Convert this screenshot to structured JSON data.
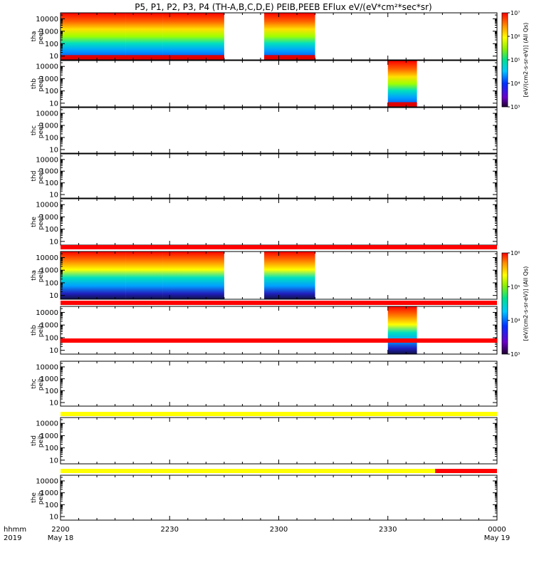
{
  "title": "P5, P1, P2, P3, P4 (TH-A,B,C,D,E) PEIB,PEEB EFlux eV/(eV*cm²*sec*sr)",
  "x_axis": {
    "row1_label": "hhmm",
    "row2_label": "2019",
    "ticks": [
      "2200",
      "2230",
      "2300",
      "2330",
      "0000"
    ],
    "dates": [
      "May 18",
      "May 19"
    ]
  },
  "y_tick_labels": [
    "10",
    "100",
    "1000",
    "10000"
  ],
  "electron_colorbar": {
    "unit_label": "[eV/(cm2-s-sr-eV)] (All Qs)",
    "labels": [
      "10³",
      "10⁴",
      "10⁵",
      "10⁶",
      "10⁷"
    ]
  },
  "ion_colorbar": {
    "unit_label": "[eV/(cm2-s-sr-eV)] (All Qs)",
    "labels": [
      "10³",
      "10⁴",
      "10⁵",
      "10⁶"
    ]
  },
  "colors": {
    "flag_red": "#ff0000",
    "flag_yellow": "#ffff00",
    "flag_black": "#000000"
  },
  "chart_data": {
    "type": "heatmap",
    "title": "P5, P1, P2, P3, P4 (TH-A,B,C,D,E) PEIB,PEEB EFlux eV/(eV*cm²*sec*sr)",
    "x_range": [
      "2019-05-18 22:00",
      "2019-05-19 00:00"
    ],
    "y_scale": "log",
    "panels": [
      {
        "label": [
          "tha",
          "peeb"
        ],
        "ylim": [
          5,
          30000
        ],
        "species": "electron",
        "data_intervals": [
          [
            "22:00",
            "22:18"
          ],
          [
            "22:18",
            "22:28"
          ],
          [
            "22:28",
            "22:45"
          ],
          [
            "22:56",
            "23:10"
          ]
        ]
      },
      {
        "label": [
          "thb",
          "peeb"
        ],
        "ylim": [
          5,
          30000
        ],
        "species": "electron",
        "data_intervals": [
          [
            "23:30",
            "23:38"
          ]
        ]
      },
      {
        "label": [
          "thc",
          "peeb"
        ],
        "ylim": [
          5,
          30000
        ],
        "species": "electron",
        "data_intervals": []
      },
      {
        "label": [
          "thd",
          "peeb"
        ],
        "ylim": [
          5,
          30000
        ],
        "species": "electron",
        "data_intervals": []
      },
      {
        "label": [
          "the",
          "peeb"
        ],
        "ylim": [
          5,
          30000
        ],
        "species": "electron",
        "data_intervals": []
      },
      {
        "label": [
          "tha",
          "peib"
        ],
        "ylim": [
          5,
          30000
        ],
        "species": "ion",
        "data_intervals": [
          [
            "22:00",
            "22:18"
          ],
          [
            "22:18",
            "22:28"
          ],
          [
            "22:28",
            "22:45"
          ],
          [
            "22:56",
            "23:10"
          ]
        ]
      },
      {
        "label": [
          "thb",
          "peib"
        ],
        "ylim": [
          5,
          30000
        ],
        "species": "ion",
        "data_intervals": [
          [
            "23:30",
            "23:38"
          ]
        ]
      },
      {
        "label": [
          "thc",
          "peib"
        ],
        "ylim": [
          5,
          30000
        ],
        "species": "ion",
        "data_intervals": []
      },
      {
        "label": [
          "thd",
          "peib"
        ],
        "ylim": [
          5,
          30000
        ],
        "species": "ion",
        "data_intervals": []
      },
      {
        "label": [
          "the",
          "peib"
        ],
        "ylim": [
          5,
          30000
        ],
        "species": "ion",
        "data_intervals": []
      }
    ],
    "electron_colorbar_range": [
      1000,
      10000000
    ],
    "ion_colorbar_range": [
      1000,
      1000000
    ],
    "flag_bars": [
      {
        "color": "red",
        "from": "22:00",
        "to": "00:00"
      },
      {
        "color": "red",
        "from": "22:00",
        "to": "00:00"
      },
      {
        "color": "red",
        "from": "22:00",
        "to": "00:00"
      },
      {
        "color": "yellow",
        "from": "22:00",
        "to": "00:00"
      },
      {
        "color": "yellow",
        "from": "22:00",
        "to": "23:43",
        "then": "red"
      }
    ]
  }
}
